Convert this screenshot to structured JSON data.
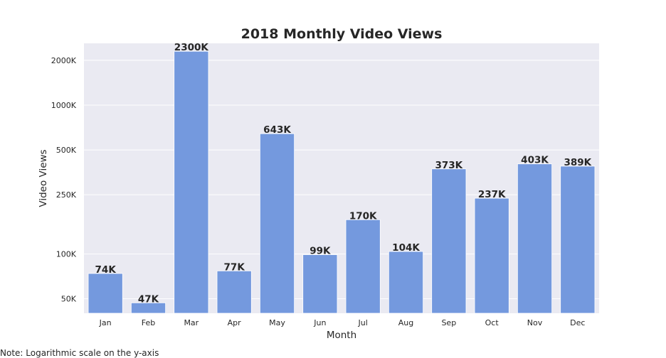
{
  "chart_data": {
    "type": "bar",
    "title": "2018 Monthly Video Views",
    "xlabel": "Month",
    "ylabel": "Video Views",
    "yscale": "log",
    "ylim": [
      40,
      2600
    ],
    "unit_suffix": "K",
    "categories": [
      "Jan",
      "Feb",
      "Mar",
      "Apr",
      "May",
      "Jun",
      "Jul",
      "Aug",
      "Sep",
      "Oct",
      "Nov",
      "Dec"
    ],
    "values": [
      74,
      47,
      2300,
      77,
      643,
      99,
      170,
      104,
      373,
      237,
      403,
      389
    ],
    "data_labels": [
      "74K",
      "47K",
      "2300K",
      "77K",
      "643K",
      "99K",
      "170K",
      "104K",
      "373K",
      "237K",
      "403K",
      "389K"
    ],
    "yticks": [
      50,
      100,
      250,
      500,
      1000,
      2000
    ],
    "ytick_labels": [
      "50K",
      "100K",
      "250K",
      "500K",
      "1000K",
      "2000K"
    ],
    "grid": true,
    "legend": "none",
    "colors": {
      "bar": "#7499de",
      "plot_bg": "#eaeaf2",
      "grid": "#ffffff"
    }
  },
  "note": "Note: Logarithmic scale on the y-axis"
}
